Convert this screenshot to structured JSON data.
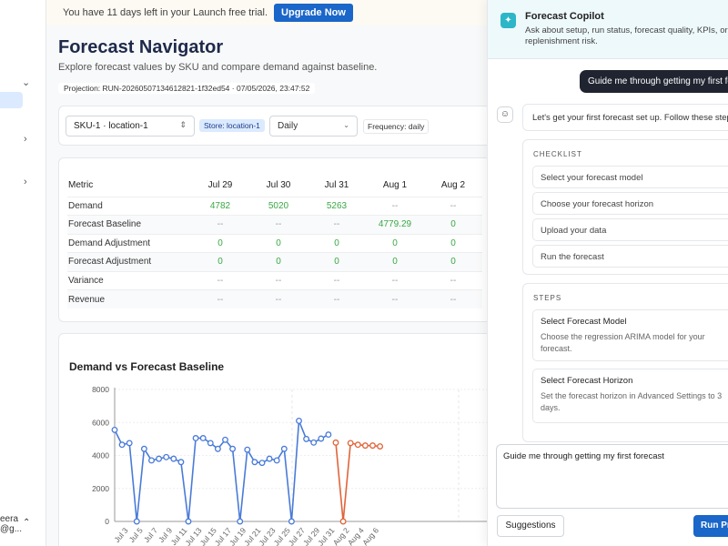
{
  "sidebar": {
    "user_name": "eera",
    "user_email": "@g..."
  },
  "trial": {
    "text": "You have 11 days left in your Launch free trial.",
    "button": "Upgrade Now"
  },
  "page": {
    "title": "Forecast Navigator",
    "subtitle": "Explore forecast values by SKU and compare demand against baseline.",
    "projection": "Projection: RUN-20260507134612821-1f32ed54 · 07/05/2026, 23:47:52"
  },
  "filters": {
    "sku": "SKU-1 · location-1",
    "store_chip": "Store: location-1",
    "period": "Daily",
    "frequency_chip": "Frequency: daily"
  },
  "table": {
    "headers": [
      "Metric",
      "Jul 29",
      "Jul 30",
      "Jul 31",
      "Aug 1",
      "Aug 2"
    ],
    "rows": [
      [
        "Demand",
        "4782",
        "5020",
        "5263",
        "--",
        "--"
      ],
      [
        "Forecast Baseline",
        "--",
        "--",
        "--",
        "4779.29",
        "0"
      ],
      [
        "Demand Adjustment",
        "0",
        "0",
        "0",
        "0",
        "0"
      ],
      [
        "Forecast Adjustment",
        "0",
        "0",
        "0",
        "0",
        "0"
      ],
      [
        "Variance",
        "--",
        "--",
        "--",
        "--",
        "--"
      ],
      [
        "Revenue",
        "--",
        "--",
        "--",
        "--",
        "--"
      ]
    ]
  },
  "chart_data": {
    "type": "line",
    "title": "Demand vs Forecast Baseline",
    "y_ticks": [
      "0",
      "2000",
      "4000",
      "6000",
      "8000"
    ],
    "ylim": [
      0,
      8000
    ],
    "x_tick_labels": [
      "Jul 3",
      "Jul 5",
      "Jul 7",
      "Jul 9",
      "Jul 11",
      "Jul 13",
      "Jul 15",
      "Jul 17",
      "Jul 19",
      "Jul 21",
      "Jul 23",
      "Jul 25",
      "Jul 27",
      "Jul 29",
      "Jul 31",
      "Aug 2",
      "Aug 4",
      "Aug 6"
    ],
    "x_start_day": 2,
    "series": [
      {
        "color": "#4a7bd8",
        "values": [
          5550,
          4650,
          4750,
          0,
          4400,
          3700,
          3800,
          3900,
          3800,
          3600,
          0,
          5050,
          5050,
          4750,
          4400,
          4950,
          4400,
          0,
          4350,
          3600,
          3550,
          3800,
          3700,
          4400,
          0,
          6100,
          5000,
          4782,
          5020,
          5263
        ]
      },
      {
        "color": "#e0643a",
        "start_index": 30,
        "values": [
          4779.29,
          0,
          4750,
          4650,
          4600,
          4600,
          4550
        ]
      }
    ]
  },
  "copilot": {
    "title": "Forecast Copilot",
    "description": "Ask about setup, run status, forecast quality, KPIs, or replenishment risk.",
    "user_message": "Guide me through getting my first forecast",
    "bot_message": "Let's get your first forecast set up. Follow these steps",
    "checklist_label": "CHECKLIST",
    "checklist": [
      "Select your forecast model",
      "Choose your forecast horizon",
      "Upload your data",
      "Run the forecast"
    ],
    "steps_label": "STEPS",
    "steps": [
      {
        "title": "Select Forecast Model",
        "desc": "Choose the regression ARIMA model for your forecast."
      },
      {
        "title": "Select Forecast Horizon",
        "desc": "Set the forecast horizon in Advanced Settings to 3 days."
      }
    ],
    "input_value": "Guide me through getting my first forecast",
    "suggestions_button": "Suggestions",
    "run_button": "Run Pr"
  }
}
